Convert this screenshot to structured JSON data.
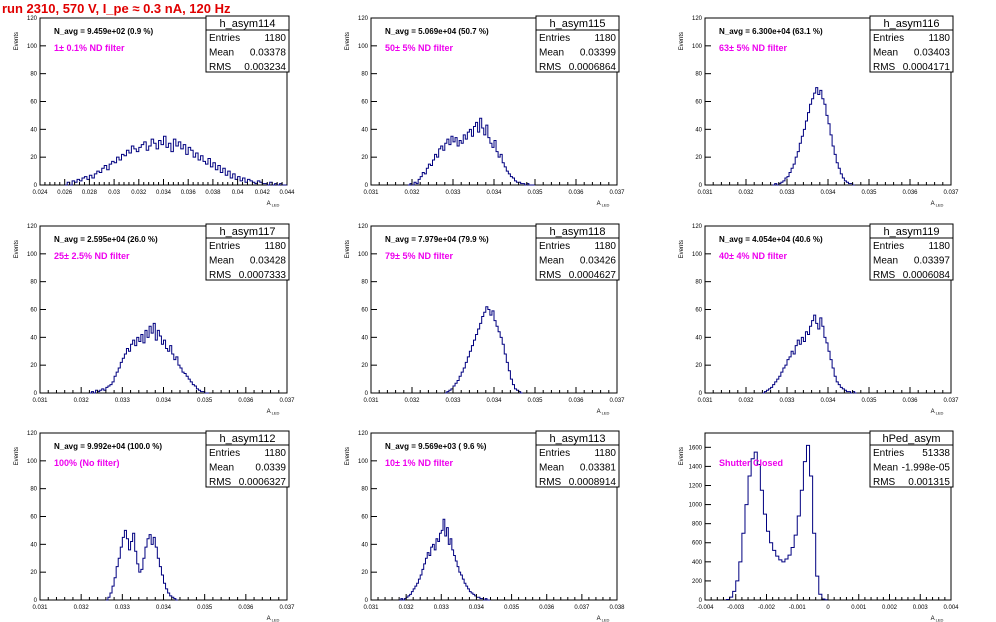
{
  "run_title": "run 2310,   570 V, I_pe ≈ 0.3 nA, 120 Hz",
  "stats_labels": {
    "entries": "Entries",
    "mean": "Mean",
    "rms": "RMS"
  },
  "y_axis_label": "Events",
  "x_axis_label_main": "A",
  "x_axis_label_sub": "LED",
  "chart_data": [
    {
      "type": "histogram",
      "name": "h_asym114",
      "title": "N_avg = 9.459e+02 (0.9 %)",
      "annotation": "1± 0.1% ND filter",
      "stats": {
        "entries": "1180",
        "mean": "0.03378",
        "rms": "0.003234"
      },
      "xlim": [
        0.024,
        0.044
      ],
      "ylim": [
        0,
        120
      ],
      "xticks": [
        "0.024",
        "0.026",
        "0.028",
        "0.03",
        "0.032",
        "0.034",
        "0.036",
        "0.038",
        "0.04",
        "0.042",
        "0.044"
      ],
      "yticks": [
        "0",
        "20",
        "40",
        "60",
        "80",
        "100",
        "120"
      ],
      "ytick_values": [
        0,
        20,
        40,
        60,
        80,
        100,
        120
      ],
      "bins": {
        "start": 0.026,
        "width": 0.0002,
        "counts": [
          0,
          2,
          0,
          3,
          2,
          4,
          3,
          5,
          6,
          4,
          7,
          5,
          8,
          10,
          9,
          12,
          14,
          11,
          15,
          17,
          16,
          20,
          18,
          22,
          21,
          25,
          23,
          28,
          26,
          24,
          27,
          29,
          31,
          25,
          28,
          33,
          30,
          26,
          32,
          29,
          35,
          27,
          30,
          24,
          33,
          28,
          31,
          26,
          29,
          22,
          27,
          25,
          20,
          23,
          18,
          21,
          17,
          15,
          19,
          13,
          16,
          11,
          14,
          9,
          12,
          7,
          10,
          5,
          8,
          4,
          6,
          3,
          5,
          2,
          4,
          3,
          2,
          1,
          3,
          2,
          1,
          1,
          0,
          2,
          0,
          1,
          0,
          1,
          0,
          0
        ]
      }
    },
    {
      "type": "histogram",
      "name": "h_asym115",
      "title": "N_avg = 5.069e+04 (50.7 %)",
      "annotation": "50± 5% ND filter",
      "stats": {
        "entries": "1180",
        "mean": "0.03399",
        "rms": "0.0006864"
      },
      "xlim": [
        0.031,
        0.037
      ],
      "ylim": [
        0,
        120
      ],
      "xticks": [
        "0.031",
        "0.032",
        "0.033",
        "0.034",
        "0.035",
        "0.036",
        "0.037"
      ],
      "yticks": [
        "0",
        "20",
        "40",
        "60",
        "80",
        "100",
        "120"
      ],
      "ytick_values": [
        0,
        20,
        40,
        60,
        80,
        100,
        120
      ],
      "bins": {
        "start": 0.0319,
        "width": 5e-05,
        "counts": [
          0,
          1,
          0,
          2,
          1,
          4,
          6,
          9,
          8,
          12,
          15,
          14,
          18,
          22,
          20,
          26,
          28,
          25,
          30,
          33,
          29,
          35,
          31,
          34,
          28,
          32,
          30,
          36,
          33,
          38,
          40,
          35,
          42,
          45,
          38,
          48,
          41,
          36,
          43,
          34,
          30,
          27,
          32,
          24,
          20,
          22,
          16,
          13,
          10,
          8,
          6,
          5,
          3,
          2,
          2,
          1,
          1,
          0,
          1,
          0,
          0,
          0
        ]
      }
    },
    {
      "type": "histogram",
      "name": "h_asym116",
      "title": "N_avg = 6.300e+04 (63.1 %)",
      "annotation": "63± 5% ND filter",
      "stats": {
        "entries": "1180",
        "mean": "0.03403",
        "rms": "0.0004171"
      },
      "xlim": [
        0.031,
        0.037
      ],
      "ylim": [
        0,
        120
      ],
      "xticks": [
        "0.031",
        "0.032",
        "0.033",
        "0.034",
        "0.035",
        "0.036",
        "0.037"
      ],
      "yticks": [
        "0",
        "20",
        "40",
        "60",
        "80",
        "100",
        "120"
      ],
      "ytick_values": [
        0,
        20,
        40,
        60,
        80,
        100,
        120
      ],
      "bins": {
        "start": 0.03265,
        "width": 5e-05,
        "counts": [
          0,
          1,
          0,
          1,
          2,
          3,
          5,
          6,
          9,
          12,
          15,
          20,
          24,
          30,
          35,
          40,
          46,
          52,
          58,
          62,
          66,
          70,
          65,
          68,
          62,
          58,
          50,
          44,
          36,
          28,
          22,
          16,
          12,
          8,
          5,
          3,
          2,
          1,
          1,
          0
        ]
      }
    },
    {
      "type": "histogram",
      "name": "h_asym117",
      "title": "N_avg = 2.595e+04 (26.0 %)",
      "annotation": "25± 2.5% ND filter",
      "stats": {
        "entries": "1180",
        "mean": "0.03428",
        "rms": "0.0007333"
      },
      "xlim": [
        0.031,
        0.037
      ],
      "ylim": [
        0,
        120
      ],
      "xticks": [
        "0.031",
        "0.032",
        "0.033",
        "0.034",
        "0.035",
        "0.036",
        "0.037"
      ],
      "yticks": [
        "0",
        "20",
        "40",
        "60",
        "80",
        "100",
        "120"
      ],
      "ytick_values": [
        0,
        20,
        40,
        60,
        80,
        100,
        120
      ],
      "bins": {
        "start": 0.0322,
        "width": 5e-05,
        "counts": [
          0,
          1,
          0,
          2,
          1,
          2,
          3,
          2,
          4,
          5,
          6,
          8,
          12,
          15,
          18,
          22,
          25,
          28,
          32,
          30,
          35,
          38,
          34,
          40,
          37,
          42,
          36,
          45,
          40,
          48,
          43,
          50,
          38,
          45,
          41,
          35,
          38,
          32,
          30,
          34,
          28,
          24,
          26,
          20,
          18,
          15,
          14,
          12,
          10,
          8,
          6,
          5,
          3,
          2,
          1,
          1,
          0,
          0
        ]
      }
    },
    {
      "type": "histogram",
      "name": "h_asym118",
      "title": "N_avg = 7.979e+04 (79.9 %)",
      "annotation": "79± 5% ND filter",
      "stats": {
        "entries": "1180",
        "mean": "0.03426",
        "rms": "0.0004627"
      },
      "xlim": [
        0.031,
        0.037
      ],
      "ylim": [
        0,
        120
      ],
      "xticks": [
        "0.031",
        "0.032",
        "0.033",
        "0.034",
        "0.035",
        "0.036",
        "0.037"
      ],
      "yticks": [
        "0",
        "20",
        "40",
        "60",
        "80",
        "100",
        "120"
      ],
      "ytick_values": [
        0,
        20,
        40,
        60,
        80,
        100,
        120
      ],
      "bins": {
        "start": 0.0328,
        "width": 5e-05,
        "counts": [
          0,
          1,
          2,
          3,
          5,
          7,
          9,
          12,
          15,
          18,
          22,
          26,
          30,
          34,
          38,
          42,
          46,
          50,
          55,
          58,
          62,
          60,
          56,
          59,
          52,
          48,
          44,
          40,
          35,
          28,
          22,
          16,
          10,
          6,
          3,
          2,
          1,
          0
        ]
      }
    },
    {
      "type": "histogram",
      "name": "h_asym119",
      "title": "N_avg = 4.054e+04 (40.6 %)",
      "annotation": "40± 4% ND filter",
      "stats": {
        "entries": "1180",
        "mean": "0.03397",
        "rms": "0.0006084"
      },
      "xlim": [
        0.031,
        0.037
      ],
      "ylim": [
        0,
        120
      ],
      "xticks": [
        "0.031",
        "0.032",
        "0.033",
        "0.034",
        "0.035",
        "0.036",
        "0.037"
      ],
      "yticks": [
        "0",
        "20",
        "40",
        "60",
        "80",
        "100",
        "120"
      ],
      "ytick_values": [
        0,
        20,
        40,
        60,
        80,
        100,
        120
      ],
      "bins": {
        "start": 0.0324,
        "width": 5e-05,
        "counts": [
          0,
          1,
          2,
          3,
          4,
          6,
          8,
          10,
          12,
          15,
          18,
          20,
          24,
          26,
          30,
          28,
          34,
          38,
          35,
          40,
          37,
          44,
          42,
          48,
          52,
          56,
          50,
          46,
          54,
          48,
          40,
          36,
          30,
          24,
          18,
          12,
          8,
          6,
          4,
          3,
          2,
          1,
          1,
          0,
          1,
          0
        ]
      }
    },
    {
      "type": "histogram",
      "name": "h_asym112",
      "title": "N_avg = 9.992e+04 (100.0 %)",
      "annotation": "100% (No filter)",
      "stats": {
        "entries": "1180",
        "mean": "0.0339",
        "rms": "0.0006327"
      },
      "xlim": [
        0.031,
        0.037
      ],
      "ylim": [
        0,
        120
      ],
      "xticks": [
        "0.031",
        "0.032",
        "0.033",
        "0.034",
        "0.035",
        "0.036",
        "0.037"
      ],
      "yticks": [
        "0",
        "20",
        "40",
        "60",
        "80",
        "100",
        "120"
      ],
      "ytick_values": [
        0,
        20,
        40,
        60,
        80,
        100,
        120
      ],
      "bins": {
        "start": 0.0326,
        "width": 5e-05,
        "counts": [
          0,
          2,
          5,
          10,
          16,
          24,
          30,
          38,
          45,
          50,
          44,
          36,
          42,
          48,
          35,
          26,
          20,
          22,
          30,
          38,
          44,
          47,
          40,
          45,
          38,
          30,
          24,
          18,
          12,
          8,
          5,
          3,
          2,
          1,
          0
        ]
      }
    },
    {
      "type": "histogram",
      "name": "h_asym113",
      "title": "N_avg = 9.569e+03 ( 9.6 %)",
      "annotation": "10± 1% ND filter",
      "stats": {
        "entries": "1180",
        "mean": "0.03381",
        "rms": "0.0008914"
      },
      "xlim": [
        0.031,
        0.038
      ],
      "ylim": [
        0,
        120
      ],
      "xticks": [
        "0.031",
        "0.032",
        "0.033",
        "0.034",
        "0.035",
        "0.036",
        "0.037",
        "0.038"
      ],
      "yticks": [
        "0",
        "20",
        "40",
        "60",
        "80",
        "100",
        "120"
      ],
      "ytick_values": [
        0,
        20,
        40,
        60,
        80,
        100,
        120
      ],
      "bins": {
        "start": 0.0318,
        "width": 5e-05,
        "counts": [
          0,
          1,
          0,
          1,
          2,
          3,
          4,
          6,
          8,
          10,
          12,
          15,
          18,
          22,
          26,
          30,
          34,
          32,
          38,
          40,
          36,
          44,
          42,
          48,
          50,
          58,
          46,
          52,
          40,
          44,
          36,
          32,
          28,
          24,
          20,
          18,
          15,
          12,
          10,
          8,
          6,
          5,
          4,
          3,
          2,
          2,
          1,
          1,
          0,
          1,
          0,
          0
        ]
      }
    },
    {
      "type": "histogram",
      "name": "hPed_asym",
      "title": "",
      "annotation": "Shutter Closed",
      "stats": {
        "entries": "51338",
        "mean": "-1.998e-05",
        "rms": "0.001315"
      },
      "xlim": [
        -0.004,
        0.004
      ],
      "ylim": [
        0,
        1750
      ],
      "xticks": [
        "-0.004",
        "-0.003",
        "-0.002",
        "-0.001",
        "0",
        "0.001",
        "0.002",
        "0.003",
        "0.004"
      ],
      "yticks": [
        "0",
        "200",
        "400",
        "600",
        "800",
        "1000",
        "1200",
        "1400",
        "1600"
      ],
      "ytick_values": [
        0,
        200,
        400,
        600,
        800,
        1000,
        1200,
        1400,
        1600
      ],
      "bins": {
        "start": -0.0033,
        "width": 0.0001,
        "counts": [
          5,
          30,
          90,
          200,
          400,
          700,
          1000,
          1300,
          1480,
          1550,
          1420,
          1150,
          900,
          720,
          600,
          520,
          460,
          420,
          400,
          430,
          470,
          550,
          680,
          880,
          1150,
          1450,
          1620,
          1300,
          700,
          250,
          60,
          10,
          2
        ]
      }
    }
  ]
}
